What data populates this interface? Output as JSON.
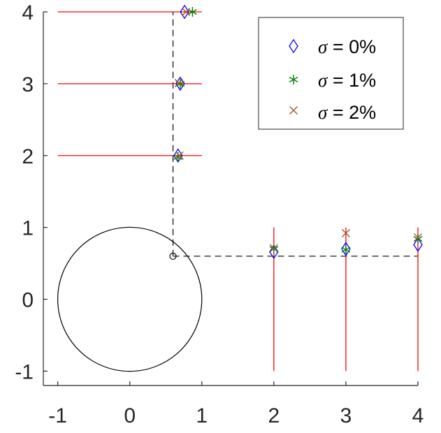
{
  "chart_data": {
    "type": "scatter",
    "title": "",
    "xlabel": "",
    "ylabel": "",
    "xlim": [
      -1.2,
      4.0
    ],
    "ylim": [
      -1.2,
      4.0
    ],
    "xticks": [
      -1,
      0,
      1,
      2,
      3,
      4
    ],
    "yticks": [
      -1,
      0,
      1,
      2,
      3,
      4
    ],
    "xtick_labels": [
      "-1",
      "0",
      "1",
      "2",
      "3",
      "4"
    ],
    "ytick_labels": [
      "-1",
      "0",
      "1",
      "2",
      "3",
      "4"
    ],
    "grid": false,
    "legend_position": "top-right",
    "circle": {
      "center": [
        0,
        0
      ],
      "radius": 1
    },
    "source_point": [
      0.6,
      0.6
    ],
    "dashed_lines": [
      {
        "x": [
          0.6,
          0.6
        ],
        "y": [
          0.6,
          4.0
        ]
      },
      {
        "x": [
          0.6,
          4.0
        ],
        "y": [
          0.6,
          0.6
        ]
      }
    ],
    "red_lines": [
      {
        "x": [
          -1,
          1
        ],
        "y": [
          4,
          4
        ]
      },
      {
        "x": [
          -1,
          1
        ],
        "y": [
          3,
          3
        ]
      },
      {
        "x": [
          -1,
          1
        ],
        "y": [
          2,
          2
        ]
      },
      {
        "x": [
          2,
          2
        ],
        "y": [
          -1,
          1
        ]
      },
      {
        "x": [
          3,
          3
        ],
        "y": [
          -1,
          1
        ]
      },
      {
        "x": [
          4,
          4
        ],
        "y": [
          -1,
          1
        ]
      }
    ],
    "series": [
      {
        "name": "σ = 0%",
        "marker": "diamond",
        "color": "#0000ff",
        "points": [
          [
            0.76,
            4.0
          ],
          [
            0.7,
            3.0
          ],
          [
            0.67,
            2.0
          ],
          [
            2.0,
            0.66
          ],
          [
            3.0,
            0.7
          ],
          [
            4.0,
            0.76
          ]
        ]
      },
      {
        "name": "σ = 1%",
        "marker": "asterisk",
        "color": "#008000",
        "points": [
          [
            0.87,
            4.0
          ],
          [
            0.7,
            3.0
          ],
          [
            0.67,
            1.98
          ],
          [
            2.0,
            0.7
          ],
          [
            3.0,
            0.69
          ],
          [
            4.0,
            0.84
          ]
        ]
      },
      {
        "name": "σ = 2%",
        "marker": "x",
        "color": "#a2542c",
        "points": [
          [
            0.78,
            4.0
          ],
          [
            0.68,
            3.01
          ],
          [
            0.69,
            2.0
          ],
          [
            2.0,
            0.71
          ],
          [
            3.0,
            0.92
          ],
          [
            4.0,
            0.86
          ]
        ]
      }
    ]
  },
  "legend": {
    "sigma_symbol": "σ",
    "labels": [
      " = 0%",
      " = 1%",
      " = 2%"
    ]
  }
}
